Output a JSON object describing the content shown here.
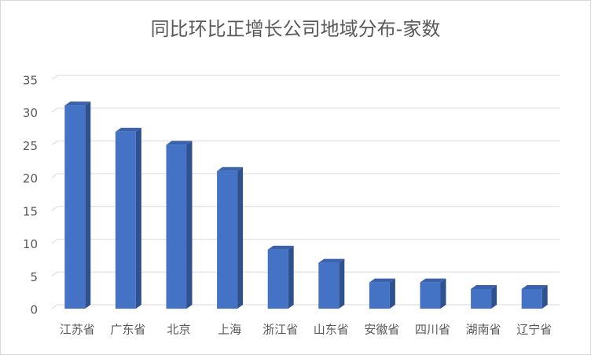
{
  "chart_data": {
    "type": "bar",
    "title": "同比环比正增长公司地域分布-家数",
    "categories": [
      "江苏省",
      "广东省",
      "北京",
      "上海",
      "浙江省",
      "山东省",
      "安徽省",
      "四川省",
      "湖南省",
      "辽宁省"
    ],
    "values": [
      31,
      27,
      25,
      21,
      9,
      7,
      4,
      4,
      3,
      3
    ],
    "color": "#4472c4",
    "ylim": [
      0,
      35
    ],
    "yticks": [
      0,
      5,
      10,
      15,
      20,
      25,
      30,
      35
    ],
    "grid": true
  }
}
